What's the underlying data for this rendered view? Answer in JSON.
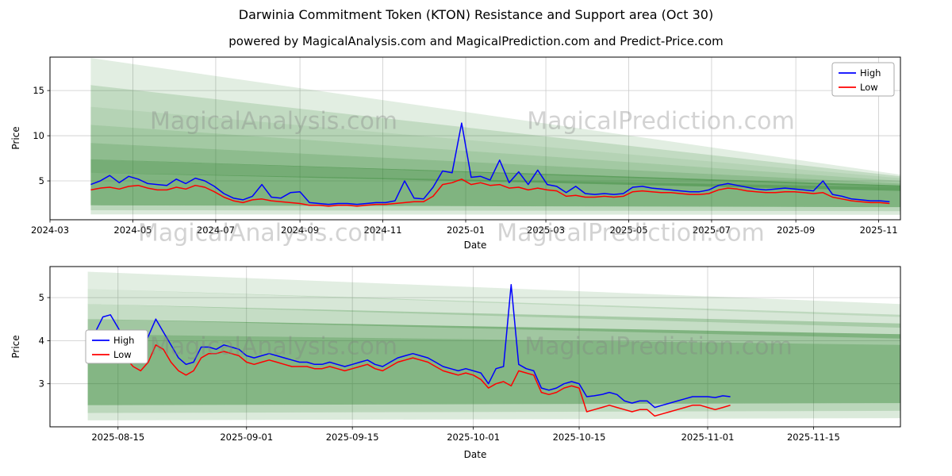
{
  "page": {
    "title": "Darwinia Commitment Token (KTON) Resistance and Support area (Oct 30)",
    "subtitle": "powered by MagicalAnalysis.com and MagicalPrediction.com and Predict-Price.com"
  },
  "watermarks": {
    "analysis": "MagicalAnalysis.com",
    "prediction": "MagicalPrediction.com"
  },
  "colors": {
    "high": "#0000ff",
    "low": "#ff0000",
    "band": "#1f7a1f",
    "grid": "#cccccc",
    "axis": "#000000"
  },
  "chart_data": [
    {
      "type": "line",
      "title": "",
      "xlabel": "Date",
      "ylabel": "Price",
      "grid": true,
      "x_epoch": "2024-03-01",
      "x_domain": [
        0,
        626
      ],
      "y_domain": [
        0.7,
        18.7
      ],
      "y_ticks": [
        5,
        10,
        15
      ],
      "x_ticks": [
        {
          "d": 0,
          "label": "2024-03"
        },
        {
          "d": 61,
          "label": "2024-05"
        },
        {
          "d": 122,
          "label": "2024-07"
        },
        {
          "d": 184,
          "label": "2024-09"
        },
        {
          "d": 245,
          "label": "2024-11"
        },
        {
          "d": 306,
          "label": "2025-01"
        },
        {
          "d": 365,
          "label": "2025-03"
        },
        {
          "d": 426,
          "label": "2025-05"
        },
        {
          "d": 487,
          "label": "2025-07"
        },
        {
          "d": 549,
          "label": "2025-09"
        },
        {
          "d": 610,
          "label": "2025-11"
        }
      ],
      "legend": {
        "loc": "upper-right",
        "entries": [
          {
            "label": "High",
            "color": "#0000ff"
          },
          {
            "label": "Low",
            "color": "#ff0000"
          }
        ]
      },
      "bands": [
        {
          "x": [
            30,
            626
          ],
          "top": [
            18.6,
            5.7
          ],
          "bottom": [
            13.2,
            5.3
          ],
          "alpha": 0.13
        },
        {
          "x": [
            30,
            626
          ],
          "top": [
            15.6,
            5.5
          ],
          "bottom": [
            11.2,
            5.0
          ],
          "alpha": 0.16
        },
        {
          "x": [
            30,
            626
          ],
          "top": [
            13.2,
            5.3
          ],
          "bottom": [
            9.2,
            4.7
          ],
          "alpha": 0.2
        },
        {
          "x": [
            30,
            626
          ],
          "top": [
            11.2,
            5.0
          ],
          "bottom": [
            7.4,
            4.3
          ],
          "alpha": 0.26
        },
        {
          "x": [
            30,
            626
          ],
          "top": [
            9.2,
            4.7
          ],
          "bottom": [
            5.9,
            3.9
          ],
          "alpha": 0.33
        },
        {
          "x": [
            30,
            626
          ],
          "top": [
            7.4,
            4.5
          ],
          "bottom": [
            2.3,
            2.1
          ],
          "alpha": 0.42
        },
        {
          "x": [
            30,
            626
          ],
          "top": [
            5.9,
            4.3
          ],
          "bottom": [
            2.3,
            2.1
          ],
          "alpha": 0.25
        },
        {
          "x": [
            30,
            626
          ],
          "top": [
            2.3,
            2.1
          ],
          "bottom": [
            1.75,
            1.65
          ],
          "alpha": 0.3
        },
        {
          "x": [
            30,
            626
          ],
          "top": [
            1.75,
            1.65
          ],
          "bottom": [
            1.3,
            1.25
          ],
          "alpha": 0.16
        }
      ],
      "series": [
        {
          "name": "High",
          "color": "#0000ff",
          "x_start": 30,
          "x_step": 7,
          "values": [
            4.6,
            5.0,
            5.6,
            4.8,
            5.5,
            5.2,
            4.7,
            4.6,
            4.5,
            5.2,
            4.7,
            5.3,
            5.0,
            4.4,
            3.6,
            3.1,
            2.9,
            3.3,
            4.6,
            3.2,
            3.1,
            3.7,
            3.8,
            2.6,
            2.5,
            2.4,
            2.5,
            2.5,
            2.4,
            2.5,
            2.6,
            2.6,
            2.8,
            5.0,
            3.1,
            3.0,
            4.3,
            6.1,
            5.9,
            11.4,
            5.4,
            5.5,
            5.1,
            7.3,
            4.8,
            6.0,
            4.6,
            6.2,
            4.6,
            4.4,
            3.7,
            4.4,
            3.6,
            3.5,
            3.6,
            3.5,
            3.6,
            4.3,
            4.4,
            4.2,
            4.1,
            4.0,
            3.9,
            3.8,
            3.8,
            4.0,
            4.5,
            4.7,
            4.5,
            4.3,
            4.1,
            4.0,
            4.1,
            4.2,
            4.1,
            4.0,
            3.9,
            5.0,
            3.5,
            3.3,
            3.0,
            2.9,
            2.8,
            2.8,
            2.7
          ]
        },
        {
          "name": "Low",
          "color": "#ff0000",
          "x_start": 30,
          "x_step": 7,
          "values": [
            4.0,
            4.2,
            4.3,
            4.1,
            4.4,
            4.5,
            4.2,
            4.0,
            4.0,
            4.3,
            4.1,
            4.5,
            4.3,
            3.8,
            3.2,
            2.8,
            2.6,
            2.9,
            3.0,
            2.8,
            2.7,
            2.6,
            2.5,
            2.3,
            2.3,
            2.2,
            2.3,
            2.3,
            2.2,
            2.3,
            2.4,
            2.4,
            2.5,
            2.6,
            2.7,
            2.7,
            3.3,
            4.6,
            4.8,
            5.2,
            4.6,
            4.8,
            4.5,
            4.6,
            4.2,
            4.3,
            4.0,
            4.2,
            4.0,
            3.9,
            3.3,
            3.4,
            3.2,
            3.2,
            3.3,
            3.2,
            3.3,
            3.8,
            3.9,
            3.8,
            3.7,
            3.7,
            3.6,
            3.5,
            3.5,
            3.6,
            4.0,
            4.2,
            4.1,
            3.9,
            3.8,
            3.7,
            3.7,
            3.8,
            3.8,
            3.7,
            3.6,
            3.7,
            3.2,
            3.0,
            2.8,
            2.7,
            2.6,
            2.6,
            2.5
          ]
        }
      ]
    },
    {
      "type": "line",
      "title": "",
      "xlabel": "Date",
      "ylabel": "Price",
      "grid": true,
      "x_epoch": "2025-08-06",
      "x_domain": [
        0,
        112.5
      ],
      "y_domain": [
        2.0,
        5.72
      ],
      "y_ticks": [
        3,
        4,
        5
      ],
      "x_ticks": [
        {
          "d": 9,
          "label": "2025-08-15"
        },
        {
          "d": 26,
          "label": "2025-09-01"
        },
        {
          "d": 40,
          "label": "2025-09-15"
        },
        {
          "d": 56,
          "label": "2025-10-01"
        },
        {
          "d": 70,
          "label": "2025-10-15"
        },
        {
          "d": 87,
          "label": "2025-11-01"
        },
        {
          "d": 101,
          "label": "2025-11-15"
        }
      ],
      "legend": {
        "loc": "center-left",
        "entries": [
          {
            "label": "High",
            "color": "#0000ff"
          },
          {
            "label": "Low",
            "color": "#ff0000"
          }
        ]
      },
      "bands": [
        {
          "x": [
            5,
            112.5
          ],
          "top": [
            5.6,
            4.85
          ],
          "bottom": [
            5.2,
            4.55
          ],
          "alpha": 0.13
        },
        {
          "x": [
            5,
            112.5
          ],
          "top": [
            5.2,
            4.6
          ],
          "bottom": [
            4.85,
            4.3
          ],
          "alpha": 0.18
        },
        {
          "x": [
            5,
            112.5
          ],
          "top": [
            4.85,
            4.4
          ],
          "bottom": [
            4.5,
            4.05
          ],
          "alpha": 0.26
        },
        {
          "x": [
            5,
            112.5
          ],
          "top": [
            4.5,
            4.15
          ],
          "bottom": [
            2.5,
            2.55
          ],
          "alpha": 0.42
        },
        {
          "x": [
            5,
            112.5
          ],
          "top": [
            4.15,
            3.9
          ],
          "bottom": [
            2.5,
            2.55
          ],
          "alpha": 0.22
        },
        {
          "x": [
            5,
            112.5
          ],
          "top": [
            2.5,
            2.55
          ],
          "bottom": [
            2.32,
            2.37
          ],
          "alpha": 0.3
        },
        {
          "x": [
            5,
            112.5
          ],
          "top": [
            2.32,
            2.37
          ],
          "bottom": [
            2.15,
            2.2
          ],
          "alpha": 0.16
        }
      ],
      "series": [
        {
          "name": "High",
          "color": "#0000ff",
          "x_start": 5,
          "x_step": 1,
          "values": [
            4.05,
            4.2,
            4.55,
            4.6,
            4.3,
            4.0,
            3.75,
            3.7,
            4.1,
            4.5,
            4.2,
            3.9,
            3.6,
            3.45,
            3.5,
            3.85,
            3.85,
            3.8,
            3.9,
            3.85,
            3.8,
            3.65,
            3.6,
            3.65,
            3.7,
            3.65,
            3.6,
            3.55,
            3.5,
            3.5,
            3.45,
            3.45,
            3.5,
            3.45,
            3.4,
            3.45,
            3.5,
            3.55,
            3.45,
            3.4,
            3.5,
            3.6,
            3.65,
            3.7,
            3.65,
            3.6,
            3.5,
            3.4,
            3.35,
            3.3,
            3.35,
            3.3,
            3.25,
            3.0,
            3.35,
            3.4,
            5.3,
            3.45,
            3.35,
            3.3,
            2.9,
            2.85,
            2.9,
            3.0,
            3.05,
            3.0,
            2.7,
            2.72,
            2.75,
            2.8,
            2.75,
            2.6,
            2.55,
            2.6,
            2.6,
            2.45,
            2.5,
            2.55,
            2.6,
            2.65,
            2.7,
            2.7,
            2.7,
            2.68,
            2.72,
            2.7
          ]
        },
        {
          "name": "Low",
          "color": "#ff0000",
          "x_start": 5,
          "x_step": 1,
          "values": [
            3.9,
            4.0,
            4.1,
            4.15,
            3.9,
            3.6,
            3.4,
            3.3,
            3.5,
            3.9,
            3.8,
            3.5,
            3.3,
            3.2,
            3.3,
            3.6,
            3.7,
            3.7,
            3.75,
            3.7,
            3.65,
            3.5,
            3.45,
            3.5,
            3.55,
            3.5,
            3.45,
            3.4,
            3.4,
            3.4,
            3.35,
            3.35,
            3.4,
            3.35,
            3.3,
            3.35,
            3.4,
            3.45,
            3.35,
            3.3,
            3.4,
            3.5,
            3.55,
            3.6,
            3.55,
            3.5,
            3.4,
            3.3,
            3.25,
            3.2,
            3.25,
            3.2,
            3.1,
            2.9,
            3.0,
            3.05,
            2.95,
            3.3,
            3.25,
            3.2,
            2.8,
            2.75,
            2.8,
            2.9,
            2.95,
            2.9,
            2.35,
            2.4,
            2.45,
            2.5,
            2.45,
            2.4,
            2.35,
            2.4,
            2.4,
            2.25,
            2.3,
            2.35,
            2.4,
            2.45,
            2.5,
            2.5,
            2.45,
            2.4,
            2.45,
            2.5
          ]
        }
      ]
    }
  ]
}
